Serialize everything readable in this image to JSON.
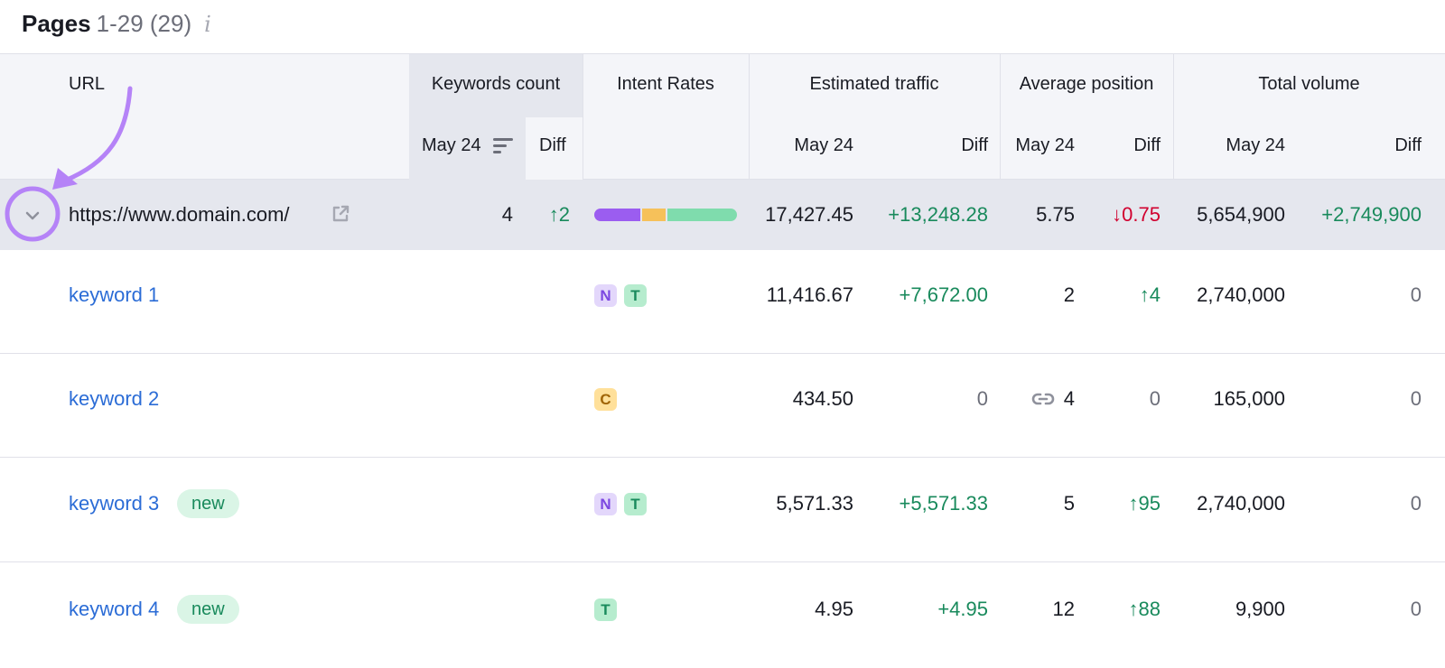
{
  "header": {
    "title": "Pages",
    "range": "1-29 (29)",
    "info_glyph": "i"
  },
  "columns": {
    "url": "URL",
    "keywords_count": "Keywords count",
    "intent_rates": "Intent Rates",
    "estimated_traffic": "Estimated traffic",
    "average_position": "Average position",
    "total_volume": "Total volume",
    "period": "May 24",
    "diff": "Diff"
  },
  "colors": {
    "intent_navigational": "#9b5df0",
    "intent_commercial": "#f6c15a",
    "intent_transactional": "#7fdcad",
    "annotation": "#b583f7"
  },
  "url_row": {
    "url": "https://www.domain.com/",
    "keywords_count": "4",
    "keywords_diff": "↑2",
    "intent_shares": [
      0.33,
      0.17,
      0.5
    ],
    "traffic": "17,427.45",
    "traffic_diff": "+13,248.28",
    "avg_position": "5.75",
    "avg_position_diff": "↓0.75",
    "volume": "5,654,900",
    "volume_diff": "+2,749,900"
  },
  "rows": [
    {
      "keyword": "keyword 1",
      "new": "",
      "intents": [
        "N",
        "T"
      ],
      "traffic": "11,416.67",
      "traffic_diff": "+7,672.00",
      "position": "2",
      "position_diff": "↑4",
      "volume": "2,740,000",
      "volume_diff": "0"
    },
    {
      "keyword": "keyword 2",
      "new": "",
      "intents": [
        "C"
      ],
      "traffic": "434.50",
      "traffic_diff": "0",
      "position": "4",
      "position_diff": "0",
      "volume": "165,000",
      "volume_diff": "0"
    },
    {
      "keyword": "keyword 3",
      "new": "new",
      "intents": [
        "N",
        "T"
      ],
      "traffic": "5,571.33",
      "traffic_diff": "+5,571.33",
      "position": "5",
      "position_diff": "↑95",
      "volume": "2,740,000",
      "volume_diff": "0"
    },
    {
      "keyword": "keyword 4",
      "new": "new",
      "intents": [
        "T"
      ],
      "traffic": "4.95",
      "traffic_diff": "+4.95",
      "position": "12",
      "position_diff": "↑88",
      "volume": "9,900",
      "volume_diff": "0"
    }
  ]
}
